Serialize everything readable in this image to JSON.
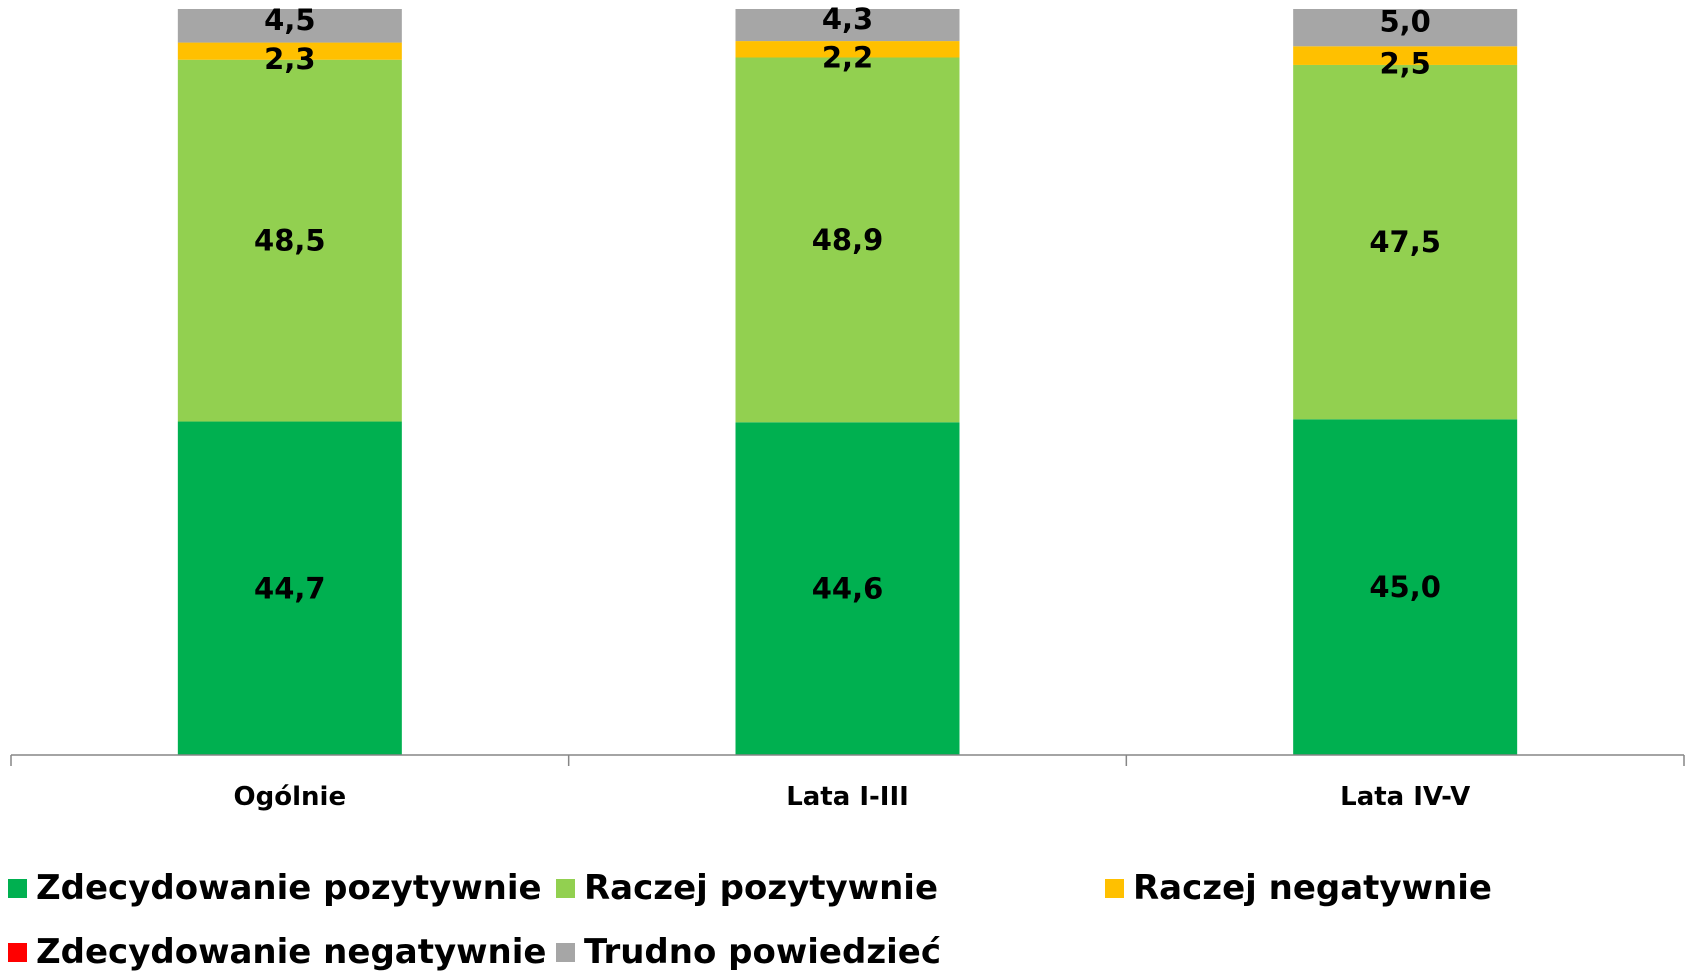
{
  "chart_data": {
    "type": "bar",
    "stacked": true,
    "categories": [
      "Ogólnie",
      "Lata I-III",
      "Lata IV-V"
    ],
    "series": [
      {
        "name": "Zdecydowanie pozytywnie",
        "color": "#00b050",
        "values": [
          44.7,
          44.6,
          45.0
        ],
        "labels": [
          "44,7",
          "44,6",
          "45,0"
        ]
      },
      {
        "name": "Raczej pozytywnie",
        "color": "#92d050",
        "values": [
          48.5,
          48.9,
          47.5
        ],
        "labels": [
          "48,5",
          "48,9",
          "47,5"
        ]
      },
      {
        "name": "Raczej negatywnie",
        "color": "#ffc000",
        "values": [
          2.3,
          2.2,
          2.5
        ],
        "labels": [
          "2,3",
          "2,2",
          "2,5"
        ]
      },
      {
        "name": "Zdecydowanie negatywnie",
        "color": "#ff0000",
        "values": [
          0,
          0,
          0
        ],
        "labels": [
          "",
          "",
          ""
        ]
      },
      {
        "name": "Trudno powiedzieć",
        "color": "#a6a6a6",
        "values": [
          4.5,
          4.3,
          5.0
        ],
        "labels": [
          "4,5",
          "4,3",
          "5,0"
        ]
      }
    ],
    "ylim": [
      0,
      100
    ],
    "legend_position": "bottom",
    "grid": false
  }
}
